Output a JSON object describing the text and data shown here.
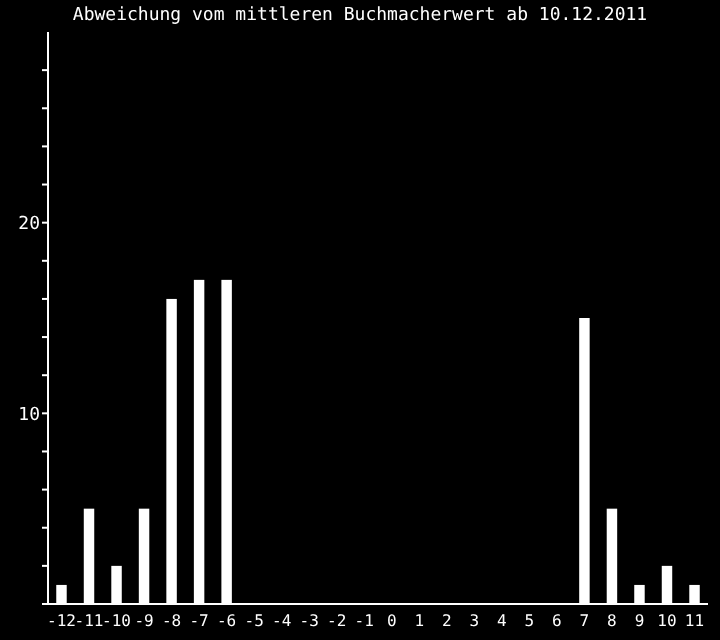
{
  "chart_data": {
    "type": "bar",
    "title": "Abweichung vom mittleren Buchmacherwert ab 10.12.2011",
    "categories": [
      "-12",
      "-11",
      "-10",
      "-9",
      "-8",
      "-7",
      "-6",
      "-5",
      "-4",
      "-3",
      "-2",
      "-1",
      "0",
      "1",
      "2",
      "3",
      "4",
      "5",
      "6",
      "7",
      "8",
      "9",
      "10",
      "11"
    ],
    "values": [
      1,
      5,
      2,
      5,
      16,
      17,
      17,
      null,
      null,
      null,
      null,
      null,
      null,
      null,
      null,
      null,
      null,
      null,
      null,
      15,
      5,
      1,
      2,
      1
    ],
    "color": "#ffffff",
    "ylim": [
      0,
      30
    ],
    "yticks": [
      {
        "value": 0,
        "label": null
      },
      {
        "value": 2,
        "label": null
      },
      {
        "value": 4,
        "label": null
      },
      {
        "value": 6,
        "label": null
      },
      {
        "value": 8,
        "label": null
      },
      10,
      {
        "value": 12,
        "label": null
      },
      {
        "value": 14,
        "label": null
      },
      {
        "value": 16,
        "label": null
      },
      {
        "value": 18,
        "label": null
      },
      20,
      {
        "value": 22,
        "label": null
      },
      {
        "value": 24,
        "label": null
      },
      {
        "value": 26,
        "label": null
      },
      {
        "value": 28,
        "label": null
      }
    ],
    "grid": false
  }
}
